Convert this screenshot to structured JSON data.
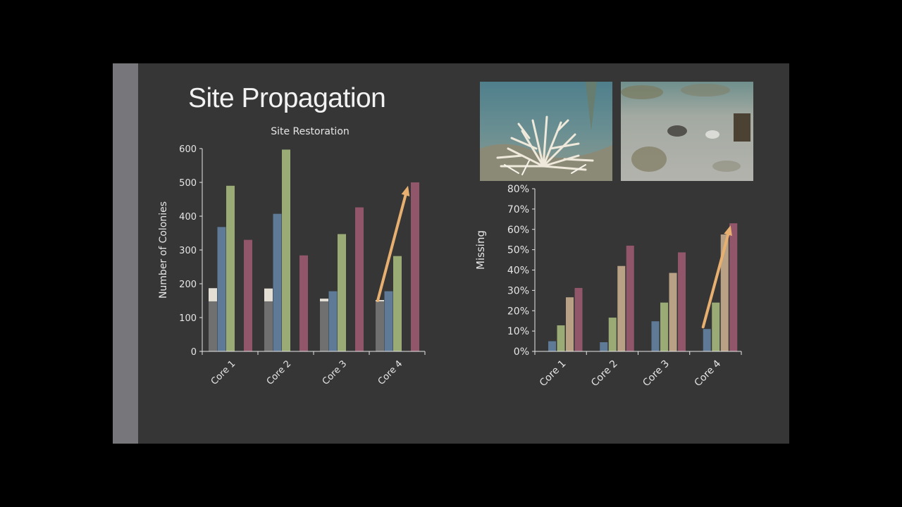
{
  "slide": {
    "title": "Site Propagation",
    "accent_bar_color": "#77767b",
    "background_color": "#363636"
  },
  "photos": [
    {
      "name": "coral-colony-photo",
      "depicts": "staghorn coral colony on reef"
    },
    {
      "name": "bare-reef-photo",
      "depicts": "sandy reef bottom with rubble"
    }
  ],
  "chart_data": [
    {
      "type": "bar",
      "title": "Site Restoration",
      "xlabel": "",
      "ylabel": "Number of Colonies",
      "categories": [
        "Core 1",
        "Core 2",
        "Core 3",
        "Core 4"
      ],
      "ylim": [
        0,
        600
      ],
      "yticks": [
        "0",
        "100",
        "200",
        "300",
        "400",
        "500",
        "600"
      ],
      "grid": false,
      "legend": "none",
      "series": [
        {
          "color": "#e4dfd4",
          "values": [
            187,
            186,
            156,
            152
          ]
        },
        {
          "color": "#707070",
          "values": [
            148,
            148,
            148,
            148
          ]
        },
        {
          "color": "#5e7a96",
          "values": [
            368,
            407,
            178,
            178
          ]
        },
        {
          "color": "#9bab76",
          "values": [
            490,
            597,
            347,
            282
          ]
        },
        {
          "color": "#91566a",
          "values": [
            330,
            284,
            426,
            500
          ]
        }
      ],
      "annotation": {
        "type": "arrow",
        "color": "#e8b070",
        "from": [
          "Core 4",
          150
        ],
        "to": [
          "Core 4",
          490
        ]
      }
    },
    {
      "type": "bar",
      "title": "",
      "xlabel": "",
      "ylabel": "Missing",
      "categories": [
        "Core 1",
        "Core 2",
        "Core 3",
        "Core 4"
      ],
      "ylim": [
        0,
        0.8
      ],
      "yticks": [
        "0%",
        "10%",
        "20%",
        "30%",
        "40%",
        "50%",
        "60%",
        "70%",
        "80%"
      ],
      "grid": false,
      "legend": "none",
      "series": [
        {
          "color": "#5e7a96",
          "values": [
            0.05,
            0.045,
            0.148,
            0.11
          ]
        },
        {
          "color": "#9bab76",
          "values": [
            0.128,
            0.166,
            0.24,
            0.24
          ]
        },
        {
          "color": "#b8a184",
          "values": [
            0.266,
            0.42,
            0.386,
            0.575
          ]
        },
        {
          "color": "#91566a",
          "values": [
            0.312,
            0.52,
            0.487,
            0.63
          ]
        }
      ],
      "annotation": {
        "type": "arrow",
        "color": "#e8b070",
        "from": [
          "Core 4",
          0.12
        ],
        "to": [
          "Core 4",
          0.62
        ]
      }
    }
  ]
}
